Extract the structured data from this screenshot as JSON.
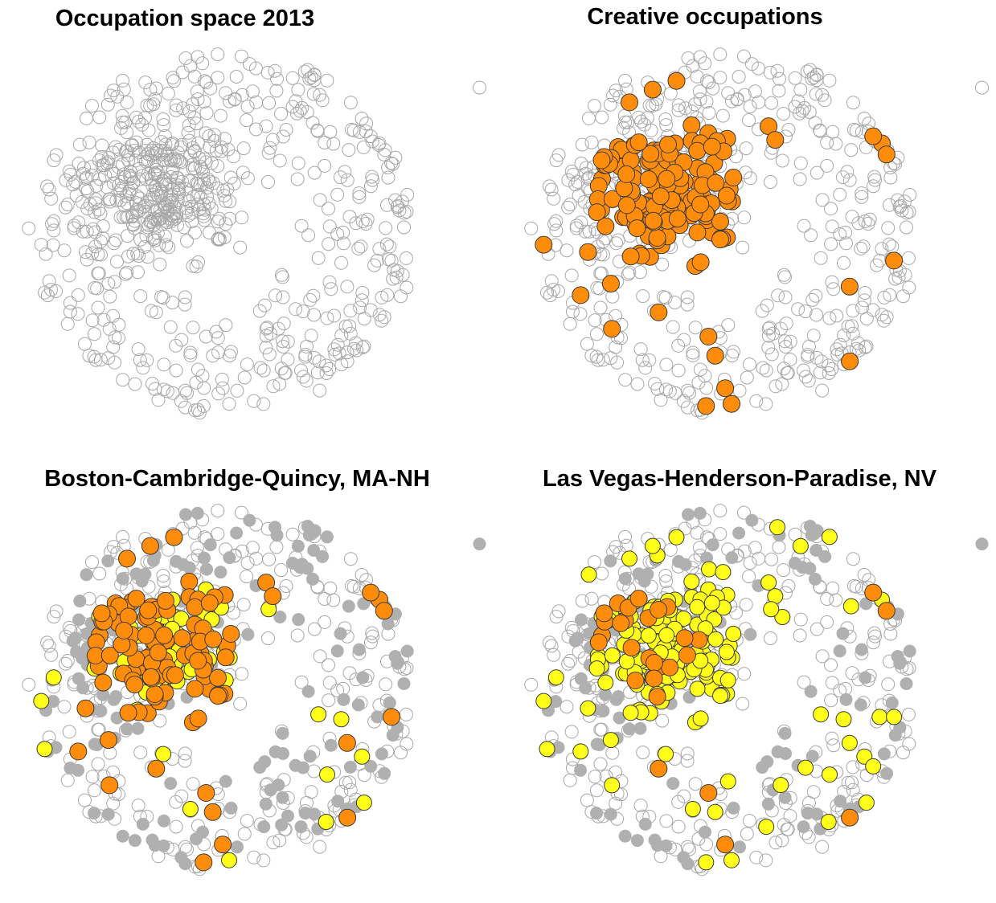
{
  "panels": [
    {
      "title": "Occupation space 2013"
    },
    {
      "title": "Creative occupations"
    },
    {
      "title": "Boston-Cambridge-Quincy, MA-NH"
    },
    {
      "title": "Las Vegas-Henderson-Paradise, NV"
    }
  ]
}
